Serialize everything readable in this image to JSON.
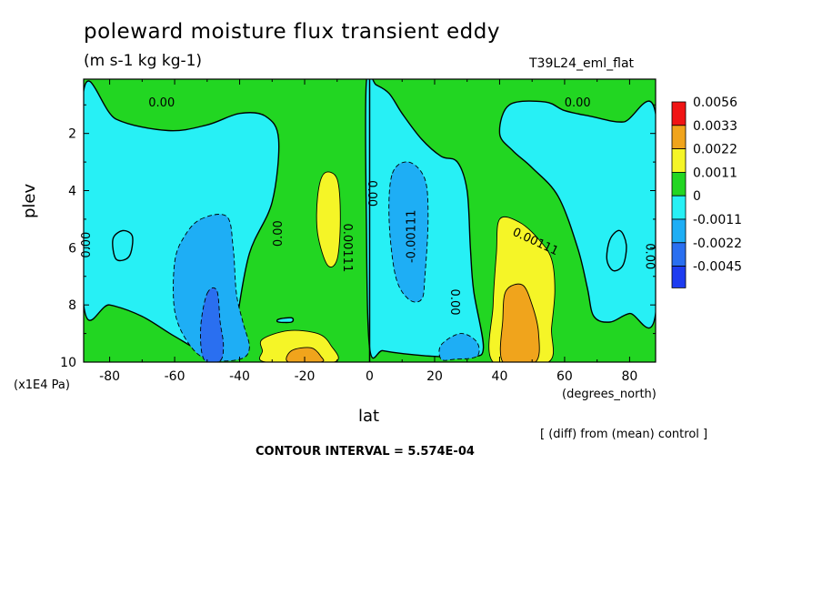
{
  "chart_data": {
    "type": "heatmap",
    "title": "poleward moisture flux transient eddy",
    "subtitle": "(m s-1 kg kg-1)",
    "run_label": "T39L24_eml_flat",
    "xlabel": "lat",
    "x_unit": "(degrees_north)",
    "ylabel": "plev",
    "y_unit": "(x1E4 Pa)",
    "note": "[ (diff) from (mean) control ]",
    "contour_interval": "CONTOUR INTERVAL = 5.574E-04",
    "xlim": [
      -88,
      88
    ],
    "ylim": [
      10,
      0.1
    ],
    "x_ticks": [
      {
        "value": -80,
        "label": "-80"
      },
      {
        "value": -60,
        "label": "-60"
      },
      {
        "value": -40,
        "label": "-40"
      },
      {
        "value": -20,
        "label": "-20"
      },
      {
        "value": 0,
        "label": "0"
      },
      {
        "value": 20,
        "label": "20"
      },
      {
        "value": 40,
        "label": "40"
      },
      {
        "value": 60,
        "label": "60"
      },
      {
        "value": 80,
        "label": "80"
      }
    ],
    "y_ticks": [
      {
        "value": 2,
        "label": "2"
      },
      {
        "value": 4,
        "label": "4"
      },
      {
        "value": 6,
        "label": "6"
      },
      {
        "value": 8,
        "label": "8"
      },
      {
        "value": 10,
        "label": "10"
      }
    ],
    "colorbar": [
      {
        "label": "0.0056",
        "color": "#f01414"
      },
      {
        "label": "0.0033",
        "color": "#f0a41c"
      },
      {
        "label": "0.0022",
        "color": "#f5f527"
      },
      {
        "label": "0.0011",
        "color": "#22d622"
      },
      {
        "label": "0",
        "color": "#27f0f5"
      },
      {
        "label": "-0.0011",
        "color": "#1eaef5"
      },
      {
        "label": "-0.0022",
        "color": "#2a6ff0"
      },
      {
        "label": "-0.0045",
        "color": null
      }
    ],
    "contour_labels": [
      {
        "x": -64,
        "y": 0.95,
        "text": "0.00",
        "angle": 0
      },
      {
        "x": 64,
        "y": 0.95,
        "text": "0.00",
        "angle": 0
      },
      {
        "x": -28,
        "y": 5.5,
        "text": "0.00",
        "angle": -90
      },
      {
        "x": -87,
        "y": 5.9,
        "text": "0.00",
        "angle": -90
      },
      {
        "x": 0.5,
        "y": 4.1,
        "text": "0.00",
        "angle": 90
      },
      {
        "x": -7,
        "y": 6.0,
        "text": "0.00111",
        "angle": 90
      },
      {
        "x": 26,
        "y": 7.9,
        "text": "0.00",
        "angle": 90
      },
      {
        "x": 86,
        "y": 6.3,
        "text": "0.00",
        "angle": 90
      },
      {
        "x": 51,
        "y": 5.8,
        "text": "0.00111",
        "angle": 25
      },
      {
        "x": 13,
        "y": 5.6,
        "text": "-0.00111",
        "angle": -90
      }
    ],
    "regions": [
      {
        "level": "0",
        "color": "#27f0f5",
        "points": [
          [
            -88,
            0.5
          ],
          [
            -78,
            1.5
          ],
          [
            -62,
            1.9
          ],
          [
            -50,
            1.7
          ],
          [
            -40,
            1.3
          ],
          [
            -32,
            1.4
          ],
          [
            -28,
            2.2
          ],
          [
            -30,
            4.4
          ],
          [
            -37,
            6.2
          ],
          [
            -41,
            8.6
          ],
          [
            -43,
            9.6
          ],
          [
            -50,
            9.7
          ],
          [
            -60,
            9.1
          ],
          [
            -70,
            8.4
          ],
          [
            -80,
            8.0
          ],
          [
            -88,
            8.0
          ]
        ]
      },
      {
        "level": "0",
        "color": "#27f0f5",
        "points": [
          [
            -1,
            0.2
          ],
          [
            2,
            0.3
          ],
          [
            6,
            0.6
          ],
          [
            10,
            1.3
          ],
          [
            16,
            2.2
          ],
          [
            22,
            2.8
          ],
          [
            27,
            3.0
          ],
          [
            30,
            4.0
          ],
          [
            31,
            6.0
          ],
          [
            32,
            7.5
          ],
          [
            35,
            9.5
          ],
          [
            31,
            9.8
          ],
          [
            20,
            9.8
          ],
          [
            10,
            9.7
          ],
          [
            4,
            9.6
          ],
          [
            0,
            9.5
          ],
          [
            -1,
            5.0
          ]
        ]
      },
      {
        "level": "0",
        "color": "#27f0f5",
        "points": [
          [
            88,
            1.3
          ],
          [
            78,
            1.6
          ],
          [
            68,
            1.4
          ],
          [
            60,
            1.2
          ],
          [
            54,
            0.9
          ],
          [
            43,
            1.0
          ],
          [
            40,
            2.0
          ],
          [
            44,
            2.6
          ],
          [
            50,
            3.2
          ],
          [
            58,
            4.2
          ],
          [
            64,
            6.0
          ],
          [
            67,
            7.4
          ],
          [
            69,
            8.4
          ],
          [
            74,
            8.6
          ],
          [
            80,
            8.3
          ],
          [
            88,
            8.3
          ]
        ]
      },
      {
        "level": "0",
        "color": "#27f0f5",
        "points": [
          [
            -79,
            5.7
          ],
          [
            -76,
            5.4
          ],
          [
            -73,
            5.6
          ],
          [
            -74,
            6.3
          ],
          [
            -78,
            6.4
          ]
        ]
      },
      {
        "level": "0",
        "color": "#27f0f5",
        "points": [
          [
            74,
            5.7
          ],
          [
            77,
            5.4
          ],
          [
            79,
            5.9
          ],
          [
            78,
            6.6
          ],
          [
            75,
            6.8
          ],
          [
            73,
            6.4
          ]
        ]
      },
      {
        "level": "0",
        "color": "#27f0f5",
        "points": [
          [
            -26,
            9.6
          ],
          [
            -18,
            9.4
          ],
          [
            -12,
            9.6
          ],
          [
            -17,
            9.9
          ],
          [
            -24,
            9.9
          ]
        ]
      },
      {
        "level": "0",
        "color": "#27f0f5",
        "points": [
          [
            -28,
            8.5
          ],
          [
            -24,
            8.45
          ],
          [
            -24,
            8.6
          ],
          [
            -28,
            8.6
          ]
        ]
      },
      {
        "level": "-0.0011",
        "color": "#1eaef5",
        "points": [
          [
            -52,
            5.0
          ],
          [
            -44,
            4.9
          ],
          [
            -42,
            6.0
          ],
          [
            -41,
            7.6
          ],
          [
            -39,
            8.6
          ],
          [
            -37,
            9.5
          ],
          [
            -40,
            9.9
          ],
          [
            -50,
            9.9
          ],
          [
            -56,
            9.3
          ],
          [
            -60,
            8.2
          ],
          [
            -60,
            6.5
          ],
          [
            -57,
            5.6
          ]
        ]
      },
      {
        "level": "-0.0011",
        "color": "#1eaef5",
        "points": [
          [
            7,
            3.4
          ],
          [
            12,
            3.0
          ],
          [
            17,
            3.6
          ],
          [
            18,
            5.0
          ],
          [
            17,
            7.0
          ],
          [
            16,
            7.8
          ],
          [
            12,
            7.8
          ],
          [
            8,
            7.0
          ],
          [
            6,
            5.0
          ]
        ]
      },
      {
        "level": "-0.0011",
        "color": "#1eaef5",
        "points": [
          [
            22,
            9.4
          ],
          [
            28,
            9.0
          ],
          [
            33,
            9.3
          ],
          [
            33,
            9.8
          ],
          [
            26,
            9.9
          ],
          [
            22,
            9.9
          ]
        ]
      },
      {
        "level": "-0.0022",
        "color": "#2a6ff0",
        "points": [
          [
            -50,
            7.6
          ],
          [
            -47,
            7.5
          ],
          [
            -46,
            8.6
          ],
          [
            -45,
            9.4
          ],
          [
            -46,
            9.95
          ],
          [
            -51,
            9.9
          ],
          [
            -52,
            8.8
          ]
        ]
      },
      {
        "level": "0.0011",
        "color": "#f5f527",
        "points": [
          [
            -14,
            3.4
          ],
          [
            -10,
            3.6
          ],
          [
            -9,
            5.0
          ],
          [
            -10,
            6.4
          ],
          [
            -13,
            6.6
          ],
          [
            -16,
            5.5
          ],
          [
            -16,
            4.2
          ]
        ]
      },
      {
        "level": "0.0011",
        "color": "#f5f527",
        "points": [
          [
            -33,
            9.2
          ],
          [
            -25,
            8.9
          ],
          [
            -16,
            9.0
          ],
          [
            -12,
            9.4
          ],
          [
            -11,
            10.0
          ],
          [
            -32,
            10.0
          ],
          [
            -33,
            9.6
          ]
        ]
      },
      {
        "level": "0.0011",
        "color": "#f5f527",
        "points": [
          [
            40,
            5.0
          ],
          [
            46,
            5.1
          ],
          [
            52,
            5.7
          ],
          [
            56,
            6.4
          ],
          [
            57,
            7.5
          ],
          [
            56,
            8.8
          ],
          [
            55,
            10.0
          ],
          [
            38,
            10.0
          ],
          [
            38,
            8.0
          ],
          [
            39,
            6.2
          ]
        ]
      },
      {
        "level": "0.0022",
        "color": "#f0a41c",
        "points": [
          [
            -24,
            9.6
          ],
          [
            -18,
            9.5
          ],
          [
            -15,
            9.8
          ],
          [
            -15,
            10.0
          ],
          [
            -25,
            10.0
          ]
        ]
      },
      {
        "level": "0.0022",
        "color": "#f0a41c",
        "points": [
          [
            42,
            7.5
          ],
          [
            47,
            7.3
          ],
          [
            50,
            8.0
          ],
          [
            52,
            9.0
          ],
          [
            51,
            10.0
          ],
          [
            41,
            10.0
          ],
          [
            41,
            8.5
          ]
        ]
      }
    ]
  }
}
